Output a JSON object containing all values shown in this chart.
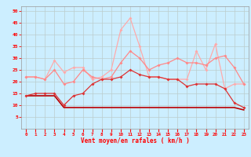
{
  "x": [
    0,
    1,
    2,
    3,
    4,
    5,
    6,
    7,
    8,
    9,
    10,
    11,
    12,
    13,
    14,
    15,
    16,
    17,
    18,
    19,
    20,
    21,
    22,
    23
  ],
  "line_max_gust": [
    22,
    22,
    21,
    29,
    24,
    26,
    26,
    21,
    22,
    25,
    42,
    47,
    35,
    22,
    22,
    21,
    21,
    21,
    33,
    25,
    36,
    17,
    19,
    19
  ],
  "line_avg_gust": [
    22,
    22,
    21,
    25,
    19,
    20,
    25,
    22,
    21,
    22,
    28,
    33,
    30,
    25,
    27,
    28,
    30,
    28,
    28,
    27,
    30,
    31,
    26,
    19
  ],
  "line_avg_wind": [
    14,
    15,
    15,
    15,
    10,
    14,
    15,
    19,
    21,
    21,
    22,
    25,
    23,
    22,
    22,
    21,
    21,
    18,
    19,
    19,
    19,
    17,
    11,
    9
  ],
  "line_min_wind": [
    14,
    14,
    14,
    14,
    9,
    9,
    9,
    9,
    9,
    9,
    9,
    9,
    9,
    9,
    9,
    9,
    9,
    9,
    9,
    9,
    9,
    9,
    9,
    8
  ],
  "colors": {
    "max_gust": "#ffaaaa",
    "avg_gust": "#ff8888",
    "avg_wind": "#dd3333",
    "min_wind": "#bb0000"
  },
  "background_color": "#cceeff",
  "grid_color": "#bbcccc",
  "ylim": [
    0,
    52
  ],
  "yticks": [
    5,
    10,
    15,
    20,
    25,
    30,
    35,
    40,
    45,
    50
  ],
  "xticks": [
    0,
    1,
    2,
    3,
    4,
    5,
    6,
    7,
    8,
    9,
    10,
    11,
    12,
    13,
    14,
    15,
    16,
    17,
    18,
    19,
    20,
    21,
    22,
    23
  ],
  "xlabel": "Vent moyen/en rafales ( km/h )",
  "marker_size": 2.0
}
